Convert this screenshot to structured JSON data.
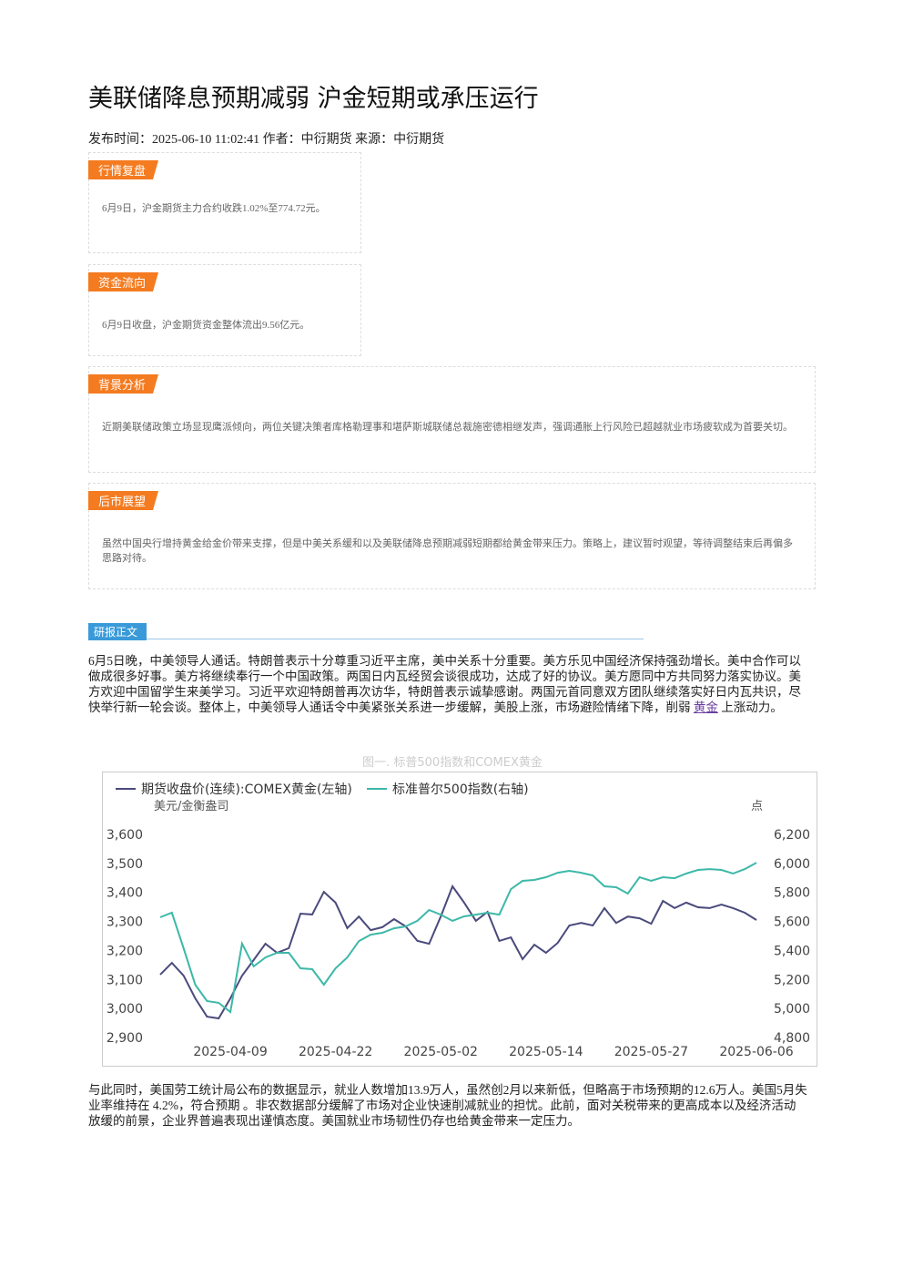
{
  "header": {
    "title": "美联储降息预期减弱 沪金短期或承压运行",
    "meta": "发布时间：2025-06-10 11:02:41 作者：中衍期货 来源：中衍期货"
  },
  "boxes": [
    {
      "label": "行情复盘",
      "text": "6月9日，沪金期货主力合约收跌1.02%至774.72元。"
    },
    {
      "label": "资金流向",
      "text": "6月9日收盘，沪金期货资金整体流出9.56亿元。"
    },
    {
      "label": "背景分析",
      "text": "近期美联储政策立场显现鹰派倾向，两位关键决策者库格勒理事和堪萨斯城联储总裁施密德相继发声，强调通胀上行风险已超越就业市场疲软成为首要关切。"
    },
    {
      "label": "后市展望",
      "text": "虽然中国央行增持黄金给金价带来支撑，但是中美关系缓和以及美联储降息预期减弱短期都给黄金带来压力。策略上，建议暂时观望，等待调整结束后再偏多思路对待。"
    }
  ],
  "section": {
    "label": "研报正文"
  },
  "paragraph1": {
    "before": "6月5日晚，中美领导人通话。特朗普表示十分尊重习近平主席，美中关系十分重要。美方乐见中国经济保持强劲增长。美中合作可以做成很多好事。美方将继续奉行一个中国政策。两国日内瓦经贸会谈很成功，达成了好的协议。美方愿同中方共同努力落实协议。美方欢迎中国留学生来美学习。习近平欢迎特朗普再次访华，特朗普表示诚挚感谢。两国元首同意双方团队继续落实好日内瓦共识，尽快举行新一轮会谈。整体上，中美领导人通话令中美紧张关系进一步缓解，美股上涨，市场避险情绪下降，削弱",
    "link": "黄金",
    "after": "上涨动力。"
  },
  "paragraph2": "与此同时，美国劳工统计局公布的数据显示，就业人数增加13.9万人，虽然创2月以来新低，但略高于市场预期的12.6万人。美国5月失业率维持在 4.2%，符合预期 。非农数据部分缓解了市场对企业快速削减就业的担忧。此前，面对关税带来的更高成本以及经济活动放缓的前景，企业界普遍表现出谨慎态度。美国就业市场韧性仍存也给黄金带来一定压力。",
  "chart_data": {
    "type": "line",
    "title": "图一. 标普500指数和COMEX黄金",
    "y_label": "美元/金衡盎司",
    "y2_label": "点",
    "categories": [
      null,
      null,
      null,
      null,
      null,
      null,
      "2025-04-09",
      null,
      null,
      null,
      null,
      null,
      null,
      null,
      null,
      "2025-04-22",
      null,
      null,
      null,
      null,
      null,
      null,
      null,
      null,
      "2025-05-02",
      null,
      null,
      null,
      null,
      null,
      null,
      null,
      null,
      "2025-05-14",
      null,
      null,
      null,
      null,
      null,
      null,
      null,
      null,
      "2025-05-27",
      null,
      null,
      null,
      null,
      null,
      null,
      null,
      null,
      "2025-06-06"
    ],
    "series": [
      {
        "name": "期货收盘价(连续):COMEX黄金(左轴)",
        "color": "#4a4a7c",
        "values": [
          3117,
          3157,
          3113,
          3035,
          2972,
          2966,
          3035,
          3113,
          3167,
          3223,
          3192,
          3208,
          3327,
          3324,
          3402,
          3365,
          3277,
          3317,
          3270,
          3280,
          3308,
          3283,
          3233,
          3223,
          3317,
          3421,
          3365,
          3302,
          3333,
          3233,
          3245,
          3170,
          3220,
          3192,
          3226,
          3286,
          3295,
          3286,
          3346,
          3295,
          3317,
          3311,
          3292,
          3371,
          3346,
          3365,
          3349,
          3346,
          3358,
          3346,
          3330,
          3305
        ]
      },
      {
        "name": "标准普尔500指数(右轴)",
        "color": "#3cb8a8",
        "axis": "y2",
        "values": [
          5629,
          5660,
          5415,
          5164,
          5051,
          5039,
          4976,
          5447,
          5290,
          5352,
          5384,
          5384,
          5277,
          5271,
          5164,
          5277,
          5352,
          5465,
          5509,
          5522,
          5553,
          5566,
          5604,
          5679,
          5647,
          5604,
          5635,
          5647,
          5660,
          5647,
          5823,
          5880,
          5886,
          5905,
          5936,
          5949,
          5936,
          5917,
          5842,
          5836,
          5792,
          5905,
          5880,
          5905,
          5898,
          5930,
          5955,
          5961,
          5955,
          5930,
          5961,
          6005
        ]
      }
    ],
    "ylim": [
      2900,
      3600
    ],
    "yticks": [
      {
        "value": 2900,
        "label": "2,900"
      },
      {
        "value": 3000,
        "label": "3,000"
      },
      {
        "value": 3100,
        "label": "3,100"
      },
      {
        "value": 3200,
        "label": "3,200"
      },
      {
        "value": 3300,
        "label": "3,300"
      },
      {
        "value": 3400,
        "label": "3,400"
      },
      {
        "value": 3500,
        "label": "3,500"
      },
      {
        "value": 3600,
        "label": "3,600"
      }
    ],
    "y2lim": [
      4800,
      6200
    ],
    "y2ticks": [
      {
        "value": 4800,
        "label": "4,800"
      },
      {
        "value": 5000,
        "label": "5,000"
      },
      {
        "value": 5200,
        "label": "5,200"
      },
      {
        "value": 5400,
        "label": "5,400"
      },
      {
        "value": 5600,
        "label": "5,600"
      },
      {
        "value": 5800,
        "label": "5,800"
      },
      {
        "value": 6000,
        "label": "6,000"
      },
      {
        "value": 6200,
        "label": "6,200"
      }
    ],
    "grid": false,
    "legend": "top-left"
  }
}
